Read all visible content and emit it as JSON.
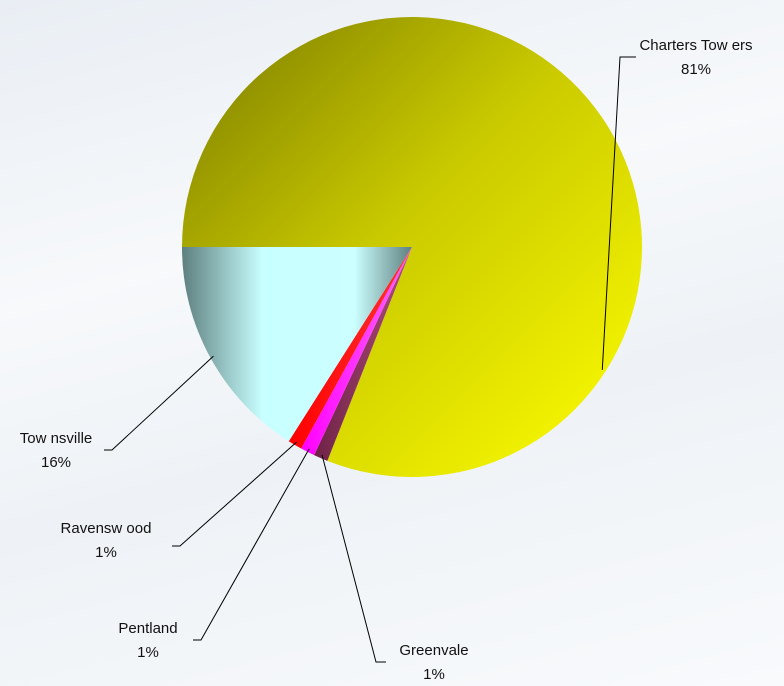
{
  "chart_data": {
    "type": "pie",
    "title": "",
    "start_angle_deg": 180,
    "direction": "clockwise",
    "labels_show": [
      "name",
      "percent"
    ],
    "legend": "none",
    "slices": [
      {
        "name": "Charters Towers",
        "display_name": "Charters Tow ers",
        "value": 81,
        "percent_label": "81%",
        "color": "#e6e600"
      },
      {
        "name": "Greenvale",
        "display_name": "Greenvale",
        "value": 1,
        "percent_label": "1%",
        "color": "#993366"
      },
      {
        "name": "Pentland",
        "display_name": "Pentland",
        "value": 1,
        "percent_label": "1%",
        "color": "#ff00ff"
      },
      {
        "name": "Ravenswood",
        "display_name": "Ravensw ood",
        "value": 1,
        "percent_label": "1%",
        "color": "#ff0000"
      },
      {
        "name": "Townsville",
        "display_name": "Tow nsville",
        "value": 16,
        "percent_label": "16%",
        "color": "#ccffff"
      }
    ]
  }
}
